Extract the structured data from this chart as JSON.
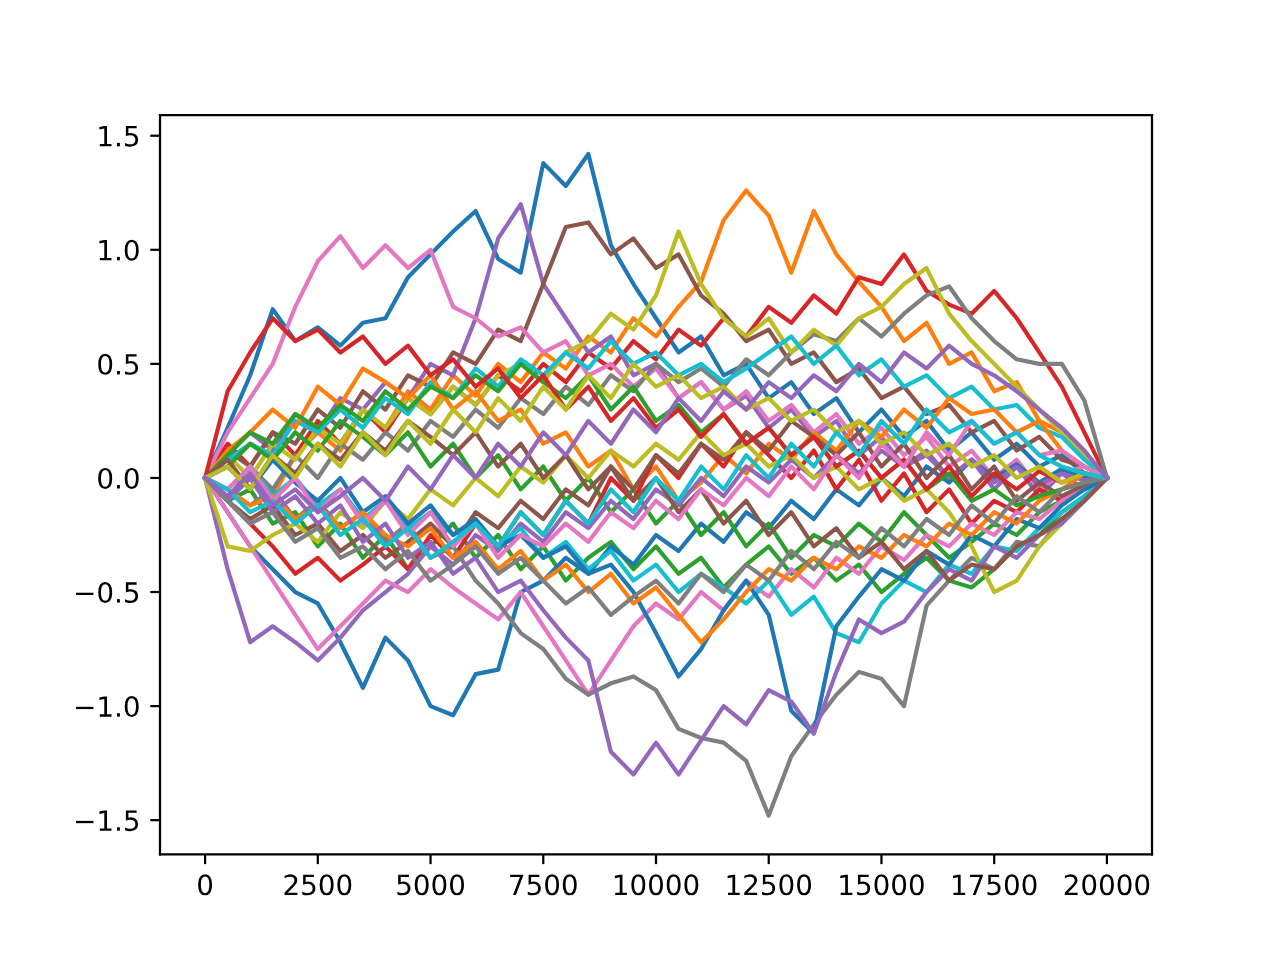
{
  "chart_data": {
    "type": "line",
    "line_style": "solid",
    "x": [
      0,
      500,
      1000,
      1500,
      2000,
      2500,
      3000,
      3500,
      4000,
      4500,
      5000,
      5500,
      6000,
      6500,
      7000,
      7500,
      8000,
      8500,
      9000,
      9500,
      10000,
      10500,
      11000,
      11500,
      12000,
      12500,
      13000,
      13500,
      14000,
      14500,
      15000,
      15500,
      16000,
      16500,
      17000,
      17500,
      18000,
      18500,
      19000,
      19500,
      20000
    ],
    "xlim": [
      -1000,
      21000
    ],
    "ylim": [
      -1.65,
      1.59
    ],
    "xticks": [
      0,
      2500,
      5000,
      7500,
      10000,
      12500,
      15000,
      17500,
      20000
    ],
    "yticks": [
      {
        "value": -1.5,
        "label": "−1.5"
      },
      {
        "value": -1.0,
        "label": "−1.0"
      },
      {
        "value": -0.5,
        "label": "−0.5"
      },
      {
        "value": 0,
        "label": "0.0"
      },
      {
        "value": 0.5,
        "label": "0.5"
      },
      {
        "value": 1.0,
        "label": "1.0"
      },
      {
        "value": 1.5,
        "label": "1.5"
      }
    ],
    "series": [
      {
        "color": "#1f77b4",
        "values": [
          0,
          0.22,
          0.45,
          0.74,
          0.6,
          0.66,
          0.58,
          0.68,
          0.7,
          0.88,
          0.98,
          1.08,
          1.17,
          0.96,
          0.9,
          1.38,
          1.28,
          1.42,
          1.02,
          0.85,
          0.7,
          0.55,
          0.62,
          0.45,
          0.5,
          0.35,
          0.42,
          0.28,
          0.35,
          0.2,
          0.3,
          0.18,
          0.25,
          0.12,
          0.2,
          0.08,
          0.15,
          0.05,
          0.1,
          0.02,
          0
        ]
      },
      {
        "color": "#ff7f0e",
        "values": [
          0,
          -0.1,
          0.05,
          -0.08,
          0.1,
          0.2,
          0.12,
          0.3,
          0.22,
          0.38,
          0.3,
          0.45,
          0.36,
          0.5,
          0.42,
          0.55,
          0.48,
          0.62,
          0.55,
          0.7,
          0.62,
          0.75,
          0.86,
          1.13,
          1.26,
          1.15,
          0.9,
          1.17,
          0.98,
          0.86,
          0.75,
          0.6,
          0.68,
          0.5,
          0.55,
          0.38,
          0.42,
          0.25,
          0.2,
          0.1,
          0
        ]
      },
      {
        "color": "#2ca02c",
        "values": [
          0,
          -0.1,
          -0.05,
          -0.2,
          -0.15,
          -0.3,
          -0.2,
          -0.35,
          -0.25,
          -0.4,
          -0.3,
          -0.2,
          -0.35,
          -0.25,
          -0.4,
          -0.3,
          -0.45,
          -0.35,
          -0.28,
          -0.4,
          -0.3,
          -0.42,
          -0.35,
          -0.48,
          -0.38,
          -0.3,
          -0.42,
          -0.35,
          -0.45,
          -0.38,
          -0.5,
          -0.42,
          -0.35,
          -0.45,
          -0.48,
          -0.4,
          -0.3,
          -0.25,
          -0.15,
          -0.08,
          0
        ]
      },
      {
        "color": "#d62728",
        "values": [
          0,
          0.15,
          0.05,
          0.2,
          0.1,
          0.25,
          0.15,
          0.3,
          0.2,
          0.35,
          0.28,
          0.4,
          0.32,
          0.45,
          0.38,
          0.5,
          0.42,
          0.55,
          0.48,
          0.6,
          0.52,
          0.65,
          0.58,
          0.7,
          0.62,
          0.75,
          0.68,
          0.8,
          0.72,
          0.88,
          0.85,
          0.98,
          0.82,
          0.76,
          0.72,
          0.82,
          0.7,
          0.55,
          0.4,
          0.2,
          0
        ]
      },
      {
        "color": "#9467bd",
        "values": [
          0,
          0.1,
          0.2,
          0.12,
          0.28,
          0.2,
          0.35,
          0.3,
          0.42,
          0.35,
          0.5,
          0.45,
          0.7,
          1.05,
          1.2,
          0.85,
          0.7,
          0.55,
          0.62,
          0.45,
          0.5,
          0.35,
          0.42,
          0.3,
          0.36,
          0.22,
          0.3,
          0.18,
          0.25,
          0.1,
          0.18,
          0.05,
          0.12,
          0,
          0.08,
          -0.05,
          0.05,
          -0.08,
          0.02,
          -0.05,
          0
        ]
      },
      {
        "color": "#8c564b",
        "values": [
          0,
          0.12,
          0.05,
          0.2,
          0.15,
          0.3,
          0.22,
          0.38,
          0.3,
          0.45,
          0.4,
          0.55,
          0.5,
          0.65,
          0.6,
          0.85,
          1.1,
          1.12,
          0.98,
          1.05,
          0.92,
          0.98,
          0.8,
          0.72,
          0.6,
          0.65,
          0.5,
          0.55,
          0.42,
          0.48,
          0.35,
          0.4,
          0.28,
          0.32,
          0.2,
          0.25,
          0.12,
          0.18,
          0.08,
          0.05,
          0
        ]
      },
      {
        "color": "#e377c2",
        "values": [
          0,
          0.2,
          0.35,
          0.5,
          0.75,
          0.95,
          1.06,
          0.92,
          1.02,
          0.92,
          1.0,
          0.75,
          0.7,
          0.62,
          0.66,
          0.55,
          0.6,
          0.45,
          0.5,
          0.4,
          0.48,
          0.35,
          0.42,
          0.3,
          0.38,
          0.25,
          0.32,
          0.2,
          0.28,
          0.15,
          0.22,
          0.1,
          0.18,
          0.05,
          0.12,
          0,
          0.08,
          -0.05,
          0.02,
          0.05,
          0
        ]
      },
      {
        "color": "#7f7f7f",
        "values": [
          0,
          -0.1,
          0.05,
          -0.05,
          0.1,
          0,
          0.15,
          0.08,
          0.2,
          0.12,
          0.25,
          0.18,
          0.3,
          0.22,
          0.35,
          0.28,
          0.4,
          0.32,
          0.45,
          0.38,
          0.5,
          0.42,
          0.48,
          0.4,
          0.52,
          0.45,
          0.55,
          0.63,
          0.6,
          0.7,
          0.62,
          0.72,
          0.8,
          0.84,
          0.7,
          0.6,
          0.52,
          0.5,
          0.5,
          0.34,
          0
        ]
      },
      {
        "color": "#bcbd22",
        "values": [
          0,
          0.1,
          0,
          0.15,
          0.08,
          0.22,
          0.15,
          0.3,
          0.22,
          0.35,
          0.28,
          0.4,
          0.32,
          0.45,
          0.5,
          0.42,
          0.55,
          0.6,
          0.72,
          0.65,
          0.8,
          1.08,
          0.85,
          0.7,
          0.62,
          0.7,
          0.55,
          0.65,
          0.58,
          0.7,
          0.75,
          0.85,
          0.92,
          0.72,
          0.6,
          0.5,
          0.4,
          0.3,
          0.2,
          0.1,
          0
        ]
      },
      {
        "color": "#17becf",
        "values": [
          0,
          0.08,
          0.15,
          0.1,
          0.25,
          0.2,
          0.3,
          0.22,
          0.35,
          0.28,
          0.42,
          0.35,
          0.48,
          0.4,
          0.52,
          0.45,
          0.55,
          0.48,
          0.6,
          0.5,
          0.55,
          0.45,
          0.5,
          0.42,
          0.48,
          0.55,
          0.62,
          0.5,
          0.58,
          0.45,
          0.52,
          0.4,
          0.45,
          0.35,
          0.4,
          0.3,
          0.32,
          0.22,
          0.18,
          0.08,
          0
        ]
      },
      {
        "color": "#1f77b4",
        "values": [
          0,
          -0.15,
          -0.3,
          -0.4,
          -0.5,
          -0.55,
          -0.72,
          -0.92,
          -0.7,
          -0.8,
          -1.0,
          -1.04,
          -0.86,
          -0.84,
          -0.5,
          -0.45,
          -0.35,
          -0.42,
          -0.3,
          -0.38,
          -0.25,
          -0.32,
          -0.2,
          -0.28,
          -0.15,
          -0.22,
          -0.1,
          -0.18,
          -0.05,
          -0.12,
          0,
          -0.08,
          0.05,
          -0.02,
          0.08,
          0,
          0.06,
          -0.02,
          0.04,
          0,
          0
        ]
      },
      {
        "color": "#ff7f0e",
        "values": [
          0,
          0.12,
          0.2,
          0.3,
          0.22,
          0.4,
          0.32,
          0.48,
          0.42,
          0.35,
          0.45,
          0.3,
          0.38,
          0.25,
          0.3,
          0.15,
          0.2,
          0.05,
          0.12,
          -0.05,
          0.05,
          -0.1,
          -0.02,
          0.1,
          0.02,
          0.15,
          0.08,
          0.2,
          0.12,
          0.25,
          0.18,
          0.3,
          0.22,
          0.35,
          0.28,
          0.3,
          0.2,
          0.25,
          0.12,
          0.05,
          0
        ]
      },
      {
        "color": "#2ca02c",
        "values": [
          0,
          0.05,
          0.15,
          0.08,
          0.2,
          0.12,
          0.25,
          0.18,
          0.1,
          0.2,
          0.05,
          0.15,
          0,
          0.1,
          -0.05,
          0.05,
          -0.1,
          0,
          -0.15,
          -0.05,
          -0.2,
          -0.1,
          -0.25,
          -0.15,
          -0.3,
          -0.2,
          -0.35,
          -0.25,
          -0.3,
          -0.2,
          -0.28,
          -0.15,
          -0.25,
          -0.35,
          -0.28,
          -0.2,
          -0.25,
          -0.15,
          -0.1,
          -0.05,
          0
        ]
      },
      {
        "color": "#d62728",
        "values": [
          0,
          -0.1,
          -0.2,
          -0.3,
          -0.42,
          -0.35,
          -0.45,
          -0.38,
          -0.3,
          -0.4,
          -0.25,
          -0.35,
          -0.2,
          -0.3,
          -0.15,
          -0.25,
          -0.1,
          -0.2,
          0,
          -0.1,
          0.1,
          0,
          0.15,
          0.05,
          0.2,
          0.1,
          0,
          0.12,
          -0.05,
          0.08,
          -0.1,
          0.02,
          -0.15,
          -0.05,
          -0.2,
          -0.1,
          -0.15,
          -0.05,
          -0.1,
          -0.02,
          0
        ]
      },
      {
        "color": "#9467bd",
        "values": [
          0,
          -0.4,
          -0.72,
          -0.65,
          -0.72,
          -0.8,
          -0.7,
          -0.58,
          -0.5,
          -0.42,
          -0.3,
          -0.38,
          -0.25,
          -0.32,
          -0.2,
          -0.28,
          -0.15,
          -0.22,
          -0.1,
          -0.18,
          -0.05,
          -0.12,
          0,
          -0.08,
          0.05,
          -0.02,
          0.08,
          0,
          0.1,
          0.02,
          0.12,
          0.05,
          0.1,
          0,
          0.08,
          -0.02,
          0.05,
          -0.03,
          0.02,
          -0.01,
          0
        ]
      },
      {
        "color": "#8c564b",
        "values": [
          0,
          -0.1,
          -0.18,
          -0.12,
          -0.25,
          -0.2,
          -0.32,
          -0.25,
          -0.35,
          -0.28,
          -0.2,
          -0.3,
          -0.15,
          -0.22,
          -0.1,
          -0.18,
          -0.05,
          -0.12,
          0.05,
          -0.05,
          0.1,
          0.02,
          0.15,
          0.08,
          0.2,
          0.12,
          0.25,
          0.18,
          0.1,
          0.2,
          0.05,
          0.15,
          0,
          0.1,
          -0.05,
          0.05,
          -0.1,
          -0.02,
          -0.08,
          -0.03,
          0
        ]
      },
      {
        "color": "#e377c2",
        "values": [
          0,
          -0.15,
          -0.3,
          -0.45,
          -0.6,
          -0.75,
          -0.65,
          -0.55,
          -0.45,
          -0.5,
          -0.4,
          -0.48,
          -0.55,
          -0.62,
          -0.5,
          -0.65,
          -0.8,
          -0.95,
          -0.8,
          -0.65,
          -0.55,
          -0.62,
          -0.5,
          -0.58,
          -0.45,
          -0.52,
          -0.4,
          -0.48,
          -0.35,
          -0.42,
          -0.3,
          -0.36,
          -0.25,
          -0.3,
          -0.2,
          -0.25,
          -0.15,
          -0.18,
          -0.1,
          -0.05,
          0
        ]
      },
      {
        "color": "#7f7f7f",
        "values": [
          0,
          -0.05,
          -0.12,
          -0.05,
          -0.18,
          -0.1,
          -0.22,
          -0.15,
          -0.28,
          -0.2,
          -0.35,
          -0.3,
          -0.45,
          -0.55,
          -0.68,
          -0.75,
          -0.88,
          -0.95,
          -0.9,
          -0.87,
          -0.93,
          -1.1,
          -1.14,
          -1.16,
          -1.24,
          -1.48,
          -1.22,
          -1.08,
          -0.95,
          -0.85,
          -0.88,
          -1.0,
          -0.56,
          -0.45,
          -0.35,
          -0.4,
          -0.28,
          -0.3,
          -0.18,
          -0.1,
          0
        ]
      },
      {
        "color": "#bcbd22",
        "values": [
          0,
          -0.3,
          -0.32,
          -0.25,
          -0.2,
          -0.28,
          -0.15,
          -0.22,
          -0.1,
          -0.18,
          -0.05,
          -0.12,
          0,
          -0.08,
          0.05,
          -0.02,
          0.1,
          0,
          0.12,
          0.05,
          0.15,
          0.08,
          0.2,
          0.1,
          0.15,
          0.05,
          0.1,
          0,
          0.05,
          -0.05,
          0,
          -0.1,
          -0.05,
          -0.15,
          -0.3,
          -0.5,
          -0.45,
          -0.3,
          -0.2,
          -0.1,
          0
        ]
      },
      {
        "color": "#17becf",
        "values": [
          0,
          -0.05,
          0.05,
          -0.08,
          0,
          -0.12,
          -0.05,
          -0.18,
          -0.1,
          -0.22,
          -0.15,
          -0.25,
          -0.2,
          -0.3,
          -0.22,
          -0.35,
          -0.28,
          -0.4,
          -0.32,
          -0.45,
          -0.38,
          -0.5,
          -0.42,
          -0.48,
          -0.55,
          -0.45,
          -0.6,
          -0.52,
          -0.68,
          -0.72,
          -0.55,
          -0.45,
          -0.5,
          -0.38,
          -0.42,
          -0.3,
          -0.32,
          -0.22,
          -0.15,
          -0.08,
          0
        ]
      },
      {
        "color": "#1f77b4",
        "values": [
          0,
          0.05,
          -0.05,
          0.08,
          -0.02,
          -0.1,
          0,
          -0.15,
          -0.08,
          -0.2,
          -0.12,
          -0.25,
          -0.18,
          -0.3,
          -0.25,
          -0.35,
          -0.3,
          -0.42,
          -0.38,
          -0.5,
          -0.68,
          -0.87,
          -0.75,
          -0.58,
          -0.45,
          -0.6,
          -1.02,
          -1.12,
          -0.65,
          -0.52,
          -0.4,
          -0.45,
          -0.32,
          -0.38,
          -0.25,
          -0.3,
          -0.18,
          -0.22,
          -0.12,
          -0.05,
          0
        ]
      },
      {
        "color": "#ff7f0e",
        "values": [
          0,
          -0.05,
          -0.12,
          -0.08,
          -0.18,
          -0.12,
          -0.22,
          -0.15,
          -0.25,
          -0.3,
          -0.22,
          -0.35,
          -0.28,
          -0.4,
          -0.32,
          -0.45,
          -0.38,
          -0.5,
          -0.42,
          -0.55,
          -0.48,
          -0.6,
          -0.72,
          -0.62,
          -0.5,
          -0.4,
          -0.45,
          -0.35,
          -0.4,
          -0.3,
          -0.35,
          -0.25,
          -0.3,
          -0.2,
          -0.25,
          -0.15,
          -0.2,
          -0.1,
          -0.05,
          0.02,
          0
        ]
      },
      {
        "color": "#2ca02c",
        "values": [
          0,
          0.1,
          0.2,
          0.15,
          0.28,
          0.22,
          0.32,
          0.25,
          0.38,
          0.3,
          0.4,
          0.35,
          0.45,
          0.38,
          0.5,
          0.42,
          0.35,
          0.45,
          0.3,
          0.4,
          0.25,
          0.32,
          0.2,
          0.28,
          0.15,
          0.22,
          0.1,
          0.18,
          0.05,
          0.12,
          0,
          0.08,
          -0.05,
          0.02,
          -0.1,
          -0.05,
          -0.12,
          -0.08,
          -0.05,
          -0.02,
          0
        ]
      },
      {
        "color": "#d62728",
        "values": [
          0,
          0.38,
          0.55,
          0.7,
          0.6,
          0.65,
          0.55,
          0.62,
          0.5,
          0.58,
          0.45,
          0.52,
          0.4,
          0.48,
          0.35,
          0.45,
          0.3,
          0.4,
          0.25,
          0.35,
          0.22,
          0.3,
          0.18,
          0.28,
          0.15,
          0.22,
          0.1,
          0.18,
          0.05,
          0.12,
          0,
          0.08,
          -0.05,
          0.05,
          -0.08,
          0.02,
          -0.05,
          0.03,
          -0.02,
          0.02,
          0
        ]
      },
      {
        "color": "#9467bd",
        "values": [
          0,
          -0.1,
          0,
          -0.15,
          -0.08,
          -0.2,
          -0.12,
          -0.28,
          -0.2,
          -0.35,
          -0.28,
          -0.42,
          -0.35,
          -0.5,
          -0.45,
          -0.58,
          -0.7,
          -0.8,
          -1.2,
          -1.3,
          -1.16,
          -1.3,
          -1.15,
          -1.0,
          -1.08,
          -0.93,
          -0.98,
          -1.12,
          -0.85,
          -0.62,
          -0.68,
          -0.63,
          -0.5,
          -0.4,
          -0.45,
          -0.3,
          -0.35,
          -0.25,
          -0.2,
          -0.1,
          0
        ]
      },
      {
        "color": "#8c564b",
        "values": [
          0,
          0.08,
          -0.05,
          0.1,
          0.02,
          0.15,
          0.08,
          0.2,
          0.12,
          0.25,
          0.18,
          0.1,
          0.2,
          0.05,
          0.15,
          0,
          0.1,
          -0.05,
          0.05,
          -0.1,
          0,
          -0.15,
          -0.05,
          -0.2,
          -0.1,
          -0.25,
          -0.15,
          -0.3,
          -0.22,
          -0.35,
          -0.28,
          -0.4,
          -0.32,
          -0.45,
          -0.38,
          -0.4,
          -0.3,
          -0.25,
          -0.18,
          -0.1,
          0
        ]
      },
      {
        "color": "#e377c2",
        "values": [
          0,
          -0.05,
          0.05,
          -0.1,
          0,
          -0.15,
          -0.05,
          -0.2,
          -0.1,
          -0.25,
          -0.15,
          -0.3,
          -0.2,
          -0.35,
          -0.25,
          -0.3,
          -0.2,
          -0.28,
          -0.15,
          -0.22,
          -0.1,
          -0.18,
          -0.05,
          -0.12,
          0,
          -0.08,
          0.05,
          -0.05,
          0.1,
          0,
          0.15,
          0.05,
          0.2,
          0.1,
          0.25,
          0.15,
          0.2,
          0.1,
          0.12,
          0.05,
          0
        ]
      },
      {
        "color": "#7f7f7f",
        "values": [
          0,
          -0.1,
          -0.2,
          -0.15,
          -0.28,
          -0.22,
          -0.35,
          -0.3,
          -0.4,
          -0.32,
          -0.45,
          -0.38,
          -0.3,
          -0.42,
          -0.35,
          -0.45,
          -0.55,
          -0.48,
          -0.6,
          -0.52,
          -0.45,
          -0.55,
          -0.42,
          -0.5,
          -0.38,
          -0.45,
          -0.32,
          -0.4,
          -0.28,
          -0.35,
          -0.22,
          -0.3,
          -0.18,
          -0.25,
          -0.12,
          -0.2,
          -0.08,
          -0.15,
          -0.05,
          -0.02,
          0
        ]
      },
      {
        "color": "#bcbd22",
        "values": [
          0,
          0.05,
          -0.05,
          0.1,
          0,
          0.15,
          0.05,
          0.2,
          0.1,
          0.25,
          0.15,
          0.3,
          0.2,
          0.35,
          0.25,
          0.4,
          0.3,
          0.45,
          0.35,
          0.5,
          0.4,
          0.45,
          0.35,
          0.4,
          0.3,
          0.35,
          0.25,
          0.3,
          0.2,
          0.25,
          0.15,
          0.2,
          0.1,
          0.15,
          0.05,
          0.1,
          0,
          0.05,
          -0.02,
          0.02,
          0
        ]
      },
      {
        "color": "#17becf",
        "values": [
          0,
          -0.05,
          -0.15,
          -0.1,
          -0.2,
          -0.12,
          -0.25,
          -0.18,
          -0.3,
          -0.22,
          -0.35,
          -0.28,
          -0.2,
          -0.3,
          -0.15,
          -0.25,
          -0.1,
          -0.2,
          -0.05,
          -0.15,
          0,
          -0.1,
          0.05,
          -0.05,
          0.1,
          0,
          0.15,
          0.05,
          0.2,
          0.1,
          0.25,
          0.15,
          0.3,
          0.2,
          0.25,
          0.15,
          0.2,
          0.1,
          0.05,
          0.02,
          0
        ]
      },
      {
        "color": "#9467bd",
        "values": [
          0,
          -0.08,
          0.02,
          -0.12,
          -0.05,
          -0.15,
          -0.08,
          0,
          -0.1,
          0.05,
          -0.05,
          0.1,
          0,
          0.15,
          0.05,
          0.2,
          0.1,
          0.25,
          0.15,
          0.3,
          0.2,
          0.35,
          0.25,
          0.38,
          0.3,
          0.42,
          0.35,
          0.45,
          0.38,
          0.5,
          0.42,
          0.55,
          0.48,
          0.58,
          0.5,
          0.45,
          0.38,
          0.3,
          0.22,
          0.12,
          0
        ]
      }
    ]
  }
}
